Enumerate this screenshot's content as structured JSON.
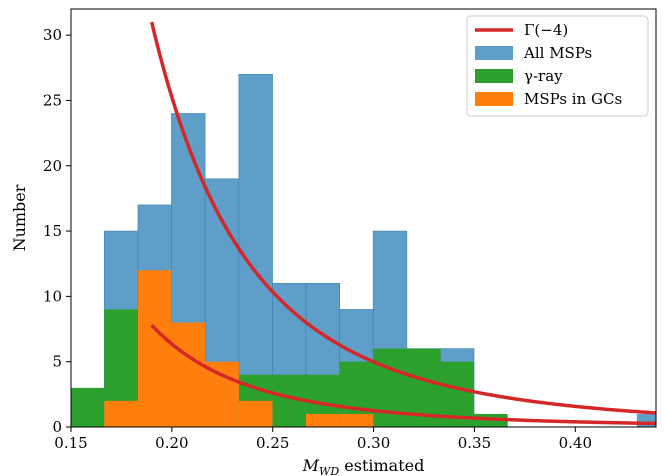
{
  "chart_data": {
    "type": "bar",
    "xlabel_prefix": "M",
    "xlabel_sub": "WD",
    "xlabel_suffix": " estimated",
    "ylabel": "Number",
    "xlim": [
      0.15,
      0.44
    ],
    "ylim": [
      0,
      32
    ],
    "xticks": [
      "0.15",
      "0.20",
      "0.25",
      "0.30",
      "0.35",
      "0.40"
    ],
    "yticks": [
      "0",
      "5",
      "10",
      "15",
      "20",
      "25",
      "30"
    ],
    "bin_edges": [
      0.1499,
      0.1665,
      0.1832,
      0.1998,
      0.2165,
      0.2332,
      0.2499,
      0.2665,
      0.2832,
      0.2998,
      0.3165,
      0.3332,
      0.3498,
      0.3665
    ],
    "last_bin": {
      "edges": [
        0.4305,
        0.44
      ],
      "value": 1
    },
    "series": [
      {
        "name": "All MSPs",
        "color": "#5f9ec9",
        "values": [
          0,
          15,
          17,
          24,
          19,
          27,
          11,
          11,
          9,
          15,
          6,
          6,
          0
        ]
      },
      {
        "name": "γ-ray",
        "color": "#2ca02c",
        "values": [
          3,
          9,
          8,
          5,
          4,
          4,
          4,
          4,
          5,
          6,
          6,
          5,
          1
        ]
      },
      {
        "name": "MSPs in GCs",
        "color": "#ff7f0e",
        "values": [
          0,
          2,
          12,
          8,
          5,
          2,
          0,
          1,
          1,
          0,
          0,
          0,
          0
        ]
      }
    ],
    "curves": [
      {
        "name": "Γ(−4)",
        "color": "#d62728",
        "x_start": 0.19,
        "x_end": 0.44,
        "anchor_x": 0.19,
        "anchor_y": 31,
        "index": -4
      },
      {
        "name": "",
        "color": "#d62728",
        "x_start": 0.19,
        "x_end": 0.44,
        "anchor_x": 0.19,
        "anchor_y": 7.8,
        "index": -4
      }
    ],
    "legend_position": "top-right"
  }
}
